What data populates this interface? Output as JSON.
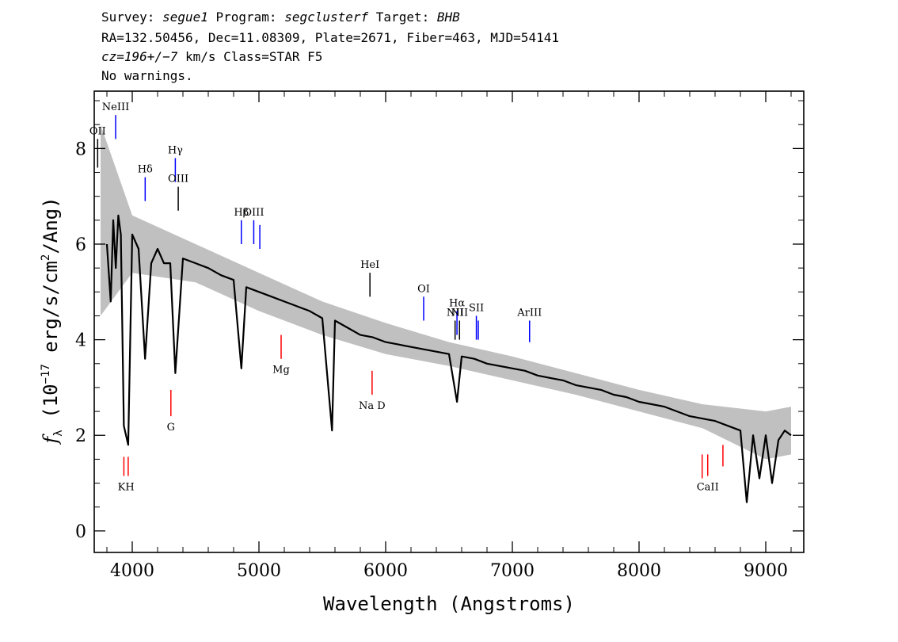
{
  "header": {
    "line1": {
      "survey_label": "Survey: ",
      "survey": "segue1",
      "program_label": " Program: ",
      "program": "segclusterf",
      "target_label": " Target: ",
      "target": "BHB"
    },
    "line2": "RA=132.50456, Dec=11.08309, Plate=2671, Fiber=463, MJD=54141",
    "line3": {
      "cz": "cz=196+/−7",
      "rest": " km/s Class=STAR F5"
    },
    "line4": "No warnings."
  },
  "chart_data": {
    "type": "line",
    "xlabel": "Wavelength (Angstroms)",
    "ylabel": "fλ (10⁻¹⁷ erg/s/cm²/Ang)",
    "xlim": [
      3700,
      9300
    ],
    "ylim": [
      -0.45,
      9.2
    ],
    "x_ticks": [
      4000,
      5000,
      6000,
      7000,
      8000,
      9000
    ],
    "x_tick_labels": [
      "4000",
      "5000",
      "6000",
      "7000",
      "8000",
      "9000"
    ],
    "y_ticks": [
      0,
      2,
      4,
      6,
      8
    ],
    "y_tick_labels": [
      "0",
      "2",
      "4",
      "6",
      "8"
    ],
    "series": [
      {
        "color": "#000000",
        "role": "smoothed flux",
        "x": [
          3800,
          3830,
          3850,
          3870,
          3890,
          3910,
          3934,
          3968,
          4000,
          4050,
          4101,
          4150,
          4200,
          4250,
          4300,
          4340,
          4400,
          4500,
          4600,
          4700,
          4800,
          4861,
          4900,
          5000,
          5100,
          5200,
          5300,
          5400,
          5500,
          5577,
          5600,
          5700,
          5800,
          5900,
          6000,
          6100,
          6200,
          6300,
          6400,
          6500,
          6563,
          6600,
          6700,
          6800,
          6900,
          7000,
          7100,
          7200,
          7300,
          7400,
          7500,
          7600,
          7700,
          7800,
          7900,
          8000,
          8100,
          8200,
          8300,
          8400,
          8500,
          8600,
          8700,
          8800,
          8850,
          8900,
          8950,
          9000,
          9050,
          9100,
          9150,
          9200
        ],
        "y": [
          6.0,
          4.8,
          6.5,
          5.5,
          6.6,
          6.2,
          2.2,
          1.8,
          6.2,
          5.9,
          3.6,
          5.6,
          5.9,
          5.6,
          5.6,
          3.3,
          5.7,
          5.6,
          5.5,
          5.35,
          5.25,
          3.4,
          5.1,
          5.0,
          4.9,
          4.8,
          4.7,
          4.6,
          4.45,
          2.1,
          4.4,
          4.25,
          4.1,
          4.05,
          3.95,
          3.9,
          3.85,
          3.8,
          3.75,
          3.7,
          2.7,
          3.65,
          3.6,
          3.5,
          3.45,
          3.4,
          3.35,
          3.25,
          3.2,
          3.15,
          3.05,
          3.0,
          2.95,
          2.85,
          2.8,
          2.7,
          2.65,
          2.6,
          2.5,
          2.4,
          2.35,
          2.3,
          2.2,
          2.1,
          0.6,
          2.0,
          1.1,
          2.0,
          1.0,
          1.9,
          2.1,
          2.0
        ]
      },
      {
        "color": "#c0c0c0",
        "role": "flux error band",
        "x": [
          3750,
          4000,
          4500,
          5000,
          5500,
          6000,
          6500,
          7000,
          7500,
          8000,
          8500,
          9000,
          9200
        ],
        "lower": [
          4.5,
          5.4,
          5.2,
          4.6,
          4.1,
          3.7,
          3.45,
          3.15,
          2.85,
          2.5,
          2.15,
          1.5,
          1.6
        ],
        "upper": [
          8.5,
          6.6,
          6.0,
          5.4,
          4.8,
          4.35,
          3.95,
          3.65,
          3.3,
          2.95,
          2.65,
          2.5,
          2.6
        ]
      }
    ],
    "emission_lines": [
      {
        "label": "OII",
        "x": 3727,
        "y1": 7.6,
        "y2": 8.2,
        "color": "#000000"
      },
      {
        "label": "NeIII",
        "x": 3869,
        "y1": 8.2,
        "y2": 8.7,
        "color": "#0000ff"
      },
      {
        "label": "Hδ",
        "x": 4102,
        "y1": 6.9,
        "y2": 7.4,
        "color": "#0000ff"
      },
      {
        "label": "Hγ",
        "x": 4340,
        "y1": 7.3,
        "y2": 7.8,
        "color": "#0000ff"
      },
      {
        "label": "OIII",
        "x": 4363,
        "y1": 6.7,
        "y2": 7.2,
        "color": "#000000"
      },
      {
        "label": "Hβ",
        "x": 4861,
        "y1": 6.0,
        "y2": 6.5,
        "color": "#0000ff"
      },
      {
        "label": "OIII",
        "x": 4959,
        "y1": 6.0,
        "y2": 6.5,
        "color": "#0000ff"
      },
      {
        "label": "",
        "x": 5007,
        "y1": 5.9,
        "y2": 6.4,
        "color": "#0000ff"
      },
      {
        "label": "HeI",
        "x": 5876,
        "y1": 4.9,
        "y2": 5.4,
        "color": "#000000"
      },
      {
        "label": "OI",
        "x": 6300,
        "y1": 4.4,
        "y2": 4.9,
        "color": "#0000ff"
      },
      {
        "label": "NII",
        "x": 6548,
        "y1": 4.0,
        "y2": 4.4,
        "color": "#000000"
      },
      {
        "label": "Hα",
        "x": 6563,
        "y1": 4.1,
        "y2": 4.6,
        "color": "#0000ff"
      },
      {
        "label": "NII",
        "x": 6583,
        "y1": 4.0,
        "y2": 4.4,
        "color": "#000000"
      },
      {
        "label": "SII",
        "x": 6716,
        "y1": 4.0,
        "y2": 4.5,
        "color": "#0000ff"
      },
      {
        "label": "",
        "x": 6731,
        "y1": 4.0,
        "y2": 4.4,
        "color": "#0000ff"
      },
      {
        "label": "ArIII",
        "x": 7136,
        "y1": 3.95,
        "y2": 4.4,
        "color": "#0000ff"
      }
    ],
    "absorption_lines": [
      {
        "label": "",
        "x": 3934,
        "y1": 1.15,
        "y2": 1.55,
        "color": "#ff0000"
      },
      {
        "label": "",
        "x": 3968,
        "y1": 1.15,
        "y2": 1.55,
        "color": "#ff0000"
      },
      {
        "label": "KH",
        "x": 3951,
        "label_only": true
      },
      {
        "label": "G",
        "x": 4305,
        "y1": 2.4,
        "y2": 2.95,
        "color": "#ff0000"
      },
      {
        "label": "Mg",
        "x": 5175,
        "y1": 3.6,
        "y2": 4.1,
        "color": "#ff0000"
      },
      {
        "label": "Na D",
        "x": 5893,
        "y1": 2.85,
        "y2": 3.35,
        "color": "#ff0000"
      },
      {
        "label": "",
        "x": 8498,
        "y1": 1.1,
        "y2": 1.6,
        "color": "#ff0000"
      },
      {
        "label": "CaII",
        "x": 8542,
        "y1": 1.15,
        "y2": 1.6,
        "color": "#ff0000"
      },
      {
        "label": "",
        "x": 8662,
        "y1": 1.35,
        "y2": 1.8,
        "color": "#ff0000"
      }
    ]
  }
}
